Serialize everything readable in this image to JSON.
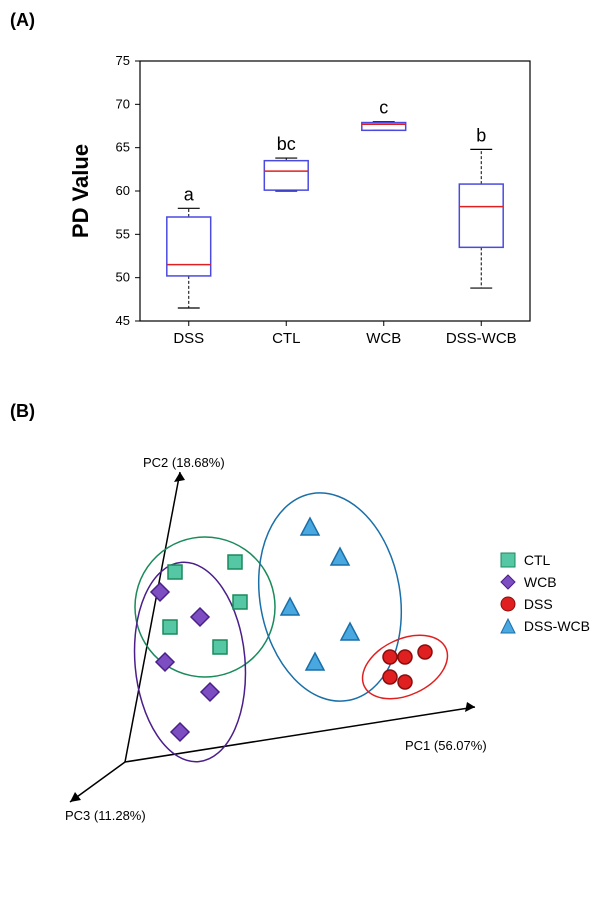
{
  "panelA": {
    "label": "(A)",
    "ylabel": "PD Value",
    "ylim": [
      45,
      75
    ],
    "ytick_step": 5,
    "background_color": "#ffffff",
    "box_stroke": "#4a4ae0",
    "median_color": "#e02020",
    "categories": [
      {
        "name": "DSS",
        "sig": "a",
        "q1": 50.2,
        "median": 51.5,
        "q3": 57.0,
        "wl": 46.5,
        "wh": 58.0
      },
      {
        "name": "CTL",
        "sig": "bc",
        "q1": 60.1,
        "median": 62.3,
        "q3": 63.5,
        "wl": 60.0,
        "wh": 63.8
      },
      {
        "name": "WCB",
        "sig": "c",
        "q1": 67.0,
        "median": 67.7,
        "q3": 67.9,
        "wl": 67.0,
        "wh": 68.0
      },
      {
        "name": "DSS-WCB",
        "sig": "b",
        "q1": 53.5,
        "median": 58.2,
        "q3": 60.8,
        "wl": 48.8,
        "wh": 64.8
      }
    ],
    "label_fontsize": 15,
    "sig_fontsize": 18
  },
  "panelB": {
    "label": "(B)",
    "axis1_label": "PC1 (56.07%)",
    "axis2_label": "PC2 (18.68%)",
    "axis3_label": "PC3 (11.28%)",
    "colors": {
      "CTL": {
        "fill": "#56c7a4",
        "stroke": "#1a8a5b"
      },
      "WCB": {
        "fill": "#7c4ec2",
        "stroke": "#4a1f8a"
      },
      "DSS": {
        "fill": "#e02020",
        "stroke": "#8a0d0d"
      },
      "DSS-WCB": {
        "fill": "#4aa8e0",
        "stroke": "#1a6fa8"
      }
    },
    "ellipses": {
      "CTL": "#1a8a5b",
      "WCB": "#4a1f8a",
      "DSS": "#e02020",
      "DSS-WCB": "#1a6fa8"
    },
    "legend": [
      {
        "shape": "square",
        "key": "CTL",
        "label": "CTL"
      },
      {
        "shape": "diamond",
        "key": "WCB",
        "label": "WCB"
      },
      {
        "shape": "circle",
        "key": "DSS",
        "label": "DSS"
      },
      {
        "shape": "triangle",
        "key": "DSS-WCB",
        "label": "DSS-WCB"
      }
    ],
    "ctl_points": [
      [
        165,
        140
      ],
      [
        225,
        130
      ],
      [
        230,
        170
      ],
      [
        160,
        195
      ],
      [
        210,
        215
      ]
    ],
    "wcb_points": [
      [
        150,
        160
      ],
      [
        190,
        185
      ],
      [
        155,
        230
      ],
      [
        200,
        260
      ],
      [
        170,
        300
      ]
    ],
    "dss_points": [
      [
        380,
        225
      ],
      [
        395,
        225
      ],
      [
        415,
        220
      ],
      [
        380,
        245
      ],
      [
        395,
        250
      ]
    ],
    "dsswcb_points": [
      [
        300,
        95
      ],
      [
        330,
        125
      ],
      [
        280,
        175
      ],
      [
        340,
        200
      ],
      [
        305,
        230
      ]
    ]
  }
}
